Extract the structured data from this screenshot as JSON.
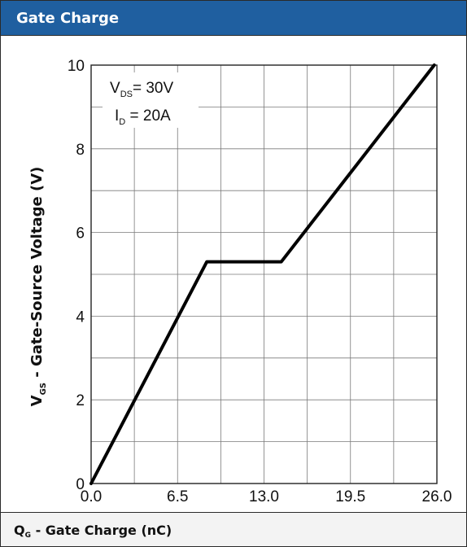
{
  "header": {
    "title": "Gate Charge"
  },
  "footer": {
    "main": "Q",
    "sub": "G",
    "rest": " - Gate Charge (nC)"
  },
  "chart_data": {
    "type": "line",
    "x_ticks": [
      "0.0",
      "6.5",
      "13.0",
      "19.5",
      "26.0"
    ],
    "y_ticks": [
      "0",
      "2",
      "4",
      "6",
      "8",
      "10"
    ],
    "xlim": [
      0,
      26
    ],
    "ylim": [
      0,
      10
    ],
    "x_gridlines": [
      0,
      3.25,
      6.5,
      9.75,
      13,
      16.25,
      19.5,
      22.75,
      26
    ],
    "y_gridlines": [
      0,
      1,
      2,
      3,
      4,
      5,
      6,
      7,
      8,
      9,
      10
    ],
    "grid": true,
    "ylabel": {
      "main": "V",
      "sub": "GS",
      "rest": " - Gate-Source Voltage (V)"
    },
    "series": [
      {
        "x": [
          0,
          8.7,
          14.3,
          25.8
        ],
        "y": [
          0,
          5.3,
          5.3,
          10
        ]
      }
    ],
    "annotation": {
      "line1": {
        "main": "V",
        "sub": "DS",
        "rest": "= 30V"
      },
      "line2": {
        "main": "I",
        "sub": "D",
        "rest": " = 20A"
      },
      "position": "top-left"
    }
  }
}
